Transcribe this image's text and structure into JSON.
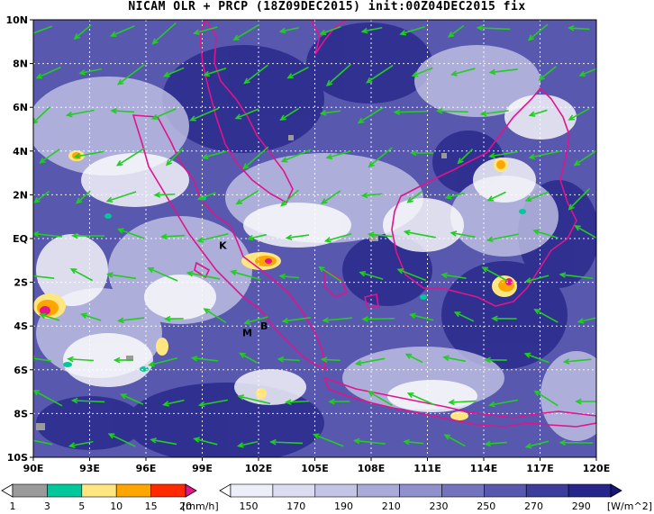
{
  "title": "NICAM OLR + PRCP (18Z09DEC2015) init:00Z04DEC2015 fix",
  "map": {
    "lon_range": [
      90,
      120
    ],
    "lat_range": [
      -10,
      10
    ],
    "lat_labels": [
      "10N",
      "8N",
      "6N",
      "4N",
      "2N",
      "EQ",
      "2S",
      "4S",
      "6S",
      "8S",
      "10S"
    ],
    "lon_labels": [
      "90E",
      "93E",
      "96E",
      "99E",
      "102E",
      "105E",
      "108E",
      "111E",
      "114E",
      "117E",
      "120E"
    ],
    "grid": "dotted white",
    "markers": [
      {
        "label": "K",
        "lon": 100.1,
        "lat": -0.3
      },
      {
        "label": "M",
        "lon": 101.4,
        "lat": -4.3
      },
      {
        "label": "B",
        "lon": 102.3,
        "lat": -4.0
      }
    ],
    "colors": {
      "coast": "#e0148c",
      "wind": "#22cc22",
      "olr_dark": "#1e2080"
    }
  },
  "precip_colorbar": {
    "ticks": [
      "1",
      "3",
      "5",
      "10",
      "15",
      "20"
    ],
    "unit": "[mm/h]",
    "colors": [
      "#ffffff",
      "#9a9a9a",
      "#00c89a",
      "#ffe680",
      "#ffa500",
      "#ff2a00",
      "#e6148c"
    ]
  },
  "olr_colorbar": {
    "ticks": [
      "150",
      "170",
      "190",
      "210",
      "230",
      "250",
      "270",
      "290"
    ],
    "unit": "[W/m^2]",
    "colors": [
      "#ffffff",
      "#eeeef8",
      "#dcdcf0",
      "#c4c4e6",
      "#aaaad8",
      "#9090cc",
      "#7474be",
      "#5858ae",
      "#3c3c9c",
      "#26268a",
      "#161676"
    ]
  }
}
